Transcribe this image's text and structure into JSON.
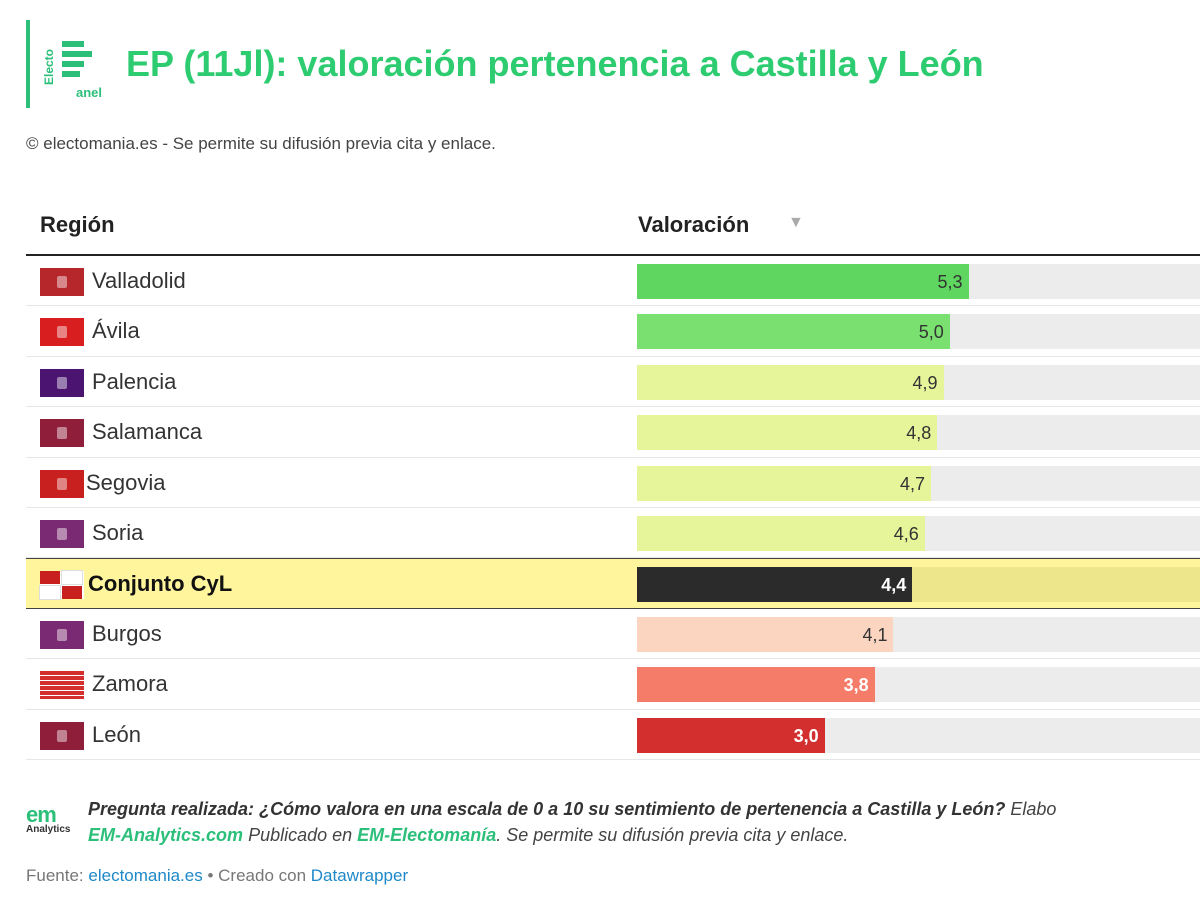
{
  "header": {
    "title": "EP (11Jl): valoración pertenencia a Castilla y León",
    "logo_vertical": "Electo",
    "logo_bottom": "anel",
    "accent_color": "#2bbf7a"
  },
  "copyright": "© electomania.es - Se permite su difusión previa cita y enlace.",
  "table": {
    "col_region": "Región",
    "col_value": "Valoración",
    "sort_icon": "▼"
  },
  "chart_data": {
    "type": "bar",
    "orientation": "horizontal",
    "xlim": [
      0,
      9
    ],
    "categories": [
      "Valladolid",
      "Ávila",
      "Palencia",
      "Salamanca",
      "Segovia",
      "Soria",
      "Conjunto CyL",
      "Burgos",
      "Zamora",
      "León"
    ],
    "values": [
      5.3,
      5.0,
      4.9,
      4.8,
      4.7,
      4.6,
      4.4,
      4.1,
      3.8,
      3.0
    ],
    "labels": [
      "5,3",
      "5,0",
      "4,9",
      "4,8",
      "4,7",
      "4,6",
      "4,4",
      "4,1",
      "3,8",
      "3,0"
    ],
    "colors": [
      "#5fd65f",
      "#7ae06f",
      "#e6f59a",
      "#e6f59a",
      "#e6f59a",
      "#e6f59a",
      "#2b2b2b",
      "#fcd5c0",
      "#f47c68",
      "#d32f2f"
    ],
    "flag_colors": [
      "#b5272b",
      "#d81e1e",
      "#4a1470",
      "#8e1e3a",
      "#c8201f",
      "#7a2a72",
      "quad",
      "#7a2a72",
      "striped",
      "#8e1e3a"
    ],
    "highlight": "Conjunto CyL"
  },
  "note": {
    "question_label": "Pregunta realizada:",
    "question_text": "¿Cómo valora en una escala de 0 a 10 su sentimiento de pertenencia a Castilla y León?",
    "trail": "Elabo",
    "link1": "EM-Analytics.com",
    "published": "Publicado en",
    "link2": "EM-Electomanía",
    "permit": ". Se permite su difusión previa cita y enlace.",
    "logo_em": "em",
    "logo_sub": "Analytics"
  },
  "footer": {
    "prefix": "Fuente:",
    "source": "electomania.es",
    "created": "• Creado con",
    "tool": "Datawrapper"
  }
}
